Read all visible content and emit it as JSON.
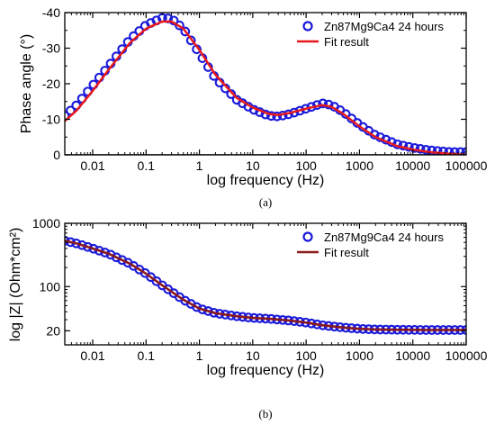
{
  "chart_data": [
    {
      "type": "line",
      "panel_label": "(a)",
      "xlabel": "log frequency (Hz)",
      "ylabel": "Phase angle (°)",
      "x_scale": "log",
      "xlim": [
        0.003,
        100000
      ],
      "ylim": [
        0,
        -40
      ],
      "x_ticks": [
        "0.01",
        "0.1",
        "1",
        "10",
        "100",
        "1000",
        "10000",
        "100000"
      ],
      "y_ticks": [
        "-40",
        "-30",
        "-20",
        "-10",
        "0"
      ],
      "zero_line": true,
      "legend_position": "top-right",
      "colors": {
        "measured": "#1a1adb",
        "fit": "#e8191c"
      },
      "x": [
        0.003,
        0.005,
        0.01,
        0.02,
        0.05,
        0.1,
        0.2,
        0.3,
        0.5,
        1,
        2,
        5,
        10,
        20,
        30,
        50,
        100,
        200,
        300,
        500,
        1000,
        2000,
        5000,
        10000,
        20000,
        50000,
        100000
      ],
      "series": [
        {
          "name": "Zn87Mg9Ca4 24 hours",
          "style": "markers",
          "values": [
            -11,
            -14,
            -19.5,
            -25,
            -32.5,
            -36.5,
            -38.5,
            -38.3,
            -35.5,
            -28.5,
            -21.5,
            -15.5,
            -12.8,
            -11,
            -10.8,
            -11.5,
            -13,
            -14.5,
            -14,
            -12,
            -8.5,
            -5.5,
            -3,
            -2,
            -1.3,
            -0.8,
            -0.8
          ]
        },
        {
          "name": "Fit result",
          "style": "line",
          "values": [
            -9.5,
            -12.5,
            -18,
            -24,
            -31.5,
            -35.5,
            -37.5,
            -37.5,
            -35.5,
            -29.5,
            -22.5,
            -16,
            -13.3,
            -11.5,
            -11.2,
            -11.8,
            -13,
            -14,
            -13.5,
            -11.5,
            -8,
            -5,
            -2.5,
            -1.5,
            -0.8,
            -0.3,
            0
          ]
        }
      ]
    },
    {
      "type": "line",
      "panel_label": "(b)",
      "xlabel": "log frequency (Hz)",
      "ylabel": "log |Z| (Ohm*cm²)",
      "x_scale": "log",
      "y_scale": "log",
      "xlim": [
        0.003,
        100000
      ],
      "ylim": [
        12,
        1000
      ],
      "x_ticks": [
        "0.01",
        "0.1",
        "1",
        "10",
        "100",
        "1000",
        "10000",
        "100000"
      ],
      "y_ticks": [
        "20",
        "100",
        "1000"
      ],
      "legend_position": "top-right",
      "colors": {
        "measured": "#1a1adb",
        "fit": "#8b1a1a",
        "error_band": "#e060e0"
      },
      "x": [
        0.003,
        0.005,
        0.01,
        0.02,
        0.05,
        0.1,
        0.2,
        0.5,
        1,
        2,
        5,
        10,
        20,
        50,
        100,
        200,
        500,
        1000,
        2000,
        5000,
        10000,
        20000,
        50000,
        100000
      ],
      "series": [
        {
          "name": "Zn87Mg9Ca4 24 hours",
          "style": "markers",
          "values": [
            530,
            480,
            400,
            330,
            230,
            160,
            105,
            62,
            45,
            38,
            34,
            32,
            31,
            29,
            27,
            24.5,
            22.5,
            21.5,
            21,
            20.8,
            20.7,
            20.6,
            20.6,
            20.6
          ]
        },
        {
          "name": "Fit result",
          "style": "line",
          "values": [
            530,
            480,
            400,
            330,
            230,
            160,
            105,
            62,
            45,
            38,
            34,
            32,
            31,
            29,
            27,
            24.5,
            22.5,
            21.5,
            21,
            20.8,
            20.7,
            20.6,
            20.6,
            20.6
          ]
        }
      ]
    }
  ]
}
